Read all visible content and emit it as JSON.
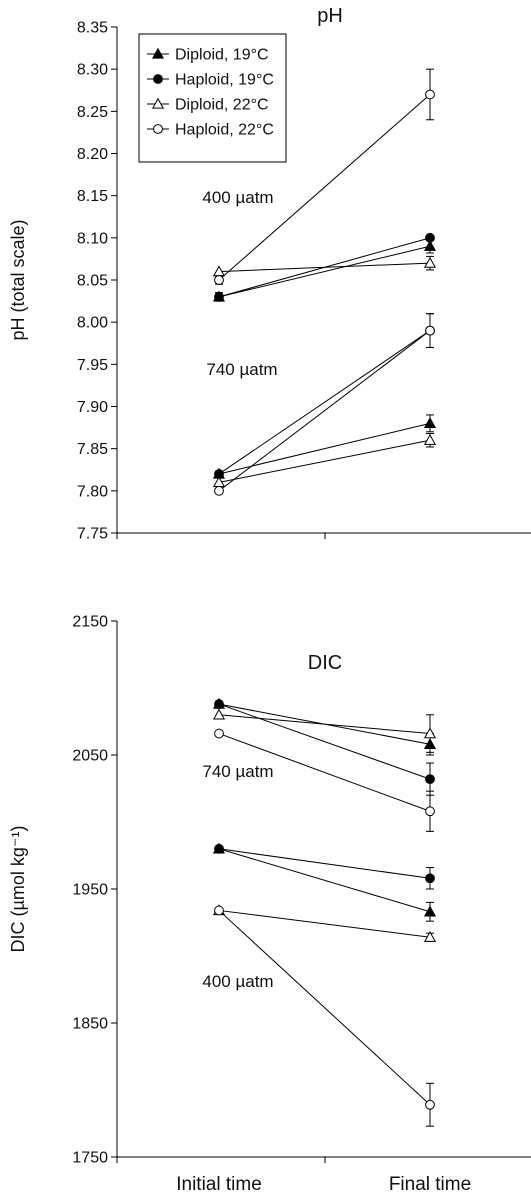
{
  "chart_data": [
    {
      "type": "line",
      "title": "pH",
      "ylabel": "pH (total scale)",
      "xlabel": "",
      "ylim": [
        7.75,
        8.35
      ],
      "yticks": [
        "7.75",
        "7.80",
        "7.85",
        "7.90",
        "7.95",
        "8.00",
        "8.05",
        "8.10",
        "8.15",
        "8.20",
        "8.25",
        "8.30",
        "8.35"
      ],
      "annotations": [
        "400 µatm",
        "740 µatm"
      ],
      "legend": {
        "placement": "top-left",
        "entries": [
          {
            "label": "Diploid, 19°C",
            "marker": "triangle",
            "filled": true
          },
          {
            "label": "Haploid, 19°C",
            "marker": "circle",
            "filled": true
          },
          {
            "label": "Diploid, 22°C",
            "marker": "triangle",
            "filled": false
          },
          {
            "label": "Haploid, 22°C",
            "marker": "circle",
            "filled": false
          }
        ]
      },
      "series": [
        {
          "name": "Diploid, 19°C",
          "marker": "triangle",
          "filled": true,
          "condition": "400 µatm",
          "y": [
            8.03,
            8.09
          ],
          "err": [
            0.005,
            0.008
          ]
        },
        {
          "name": "Haploid, 19°C",
          "marker": "circle",
          "filled": true,
          "condition": "400 µatm",
          "y": [
            8.03,
            8.1
          ],
          "err": [
            0.005,
            0
          ]
        },
        {
          "name": "Diploid, 22°C",
          "marker": "triangle",
          "filled": false,
          "condition": "400 µatm",
          "y": [
            8.06,
            8.07
          ],
          "err": [
            0,
            0.008
          ]
        },
        {
          "name": "Haploid, 22°C",
          "marker": "circle",
          "filled": false,
          "condition": "400 µatm",
          "y": [
            8.05,
            8.27
          ],
          "err": [
            0.005,
            0.03
          ]
        },
        {
          "name": "Diploid, 19°C",
          "marker": "triangle",
          "filled": true,
          "condition": "740 µatm",
          "y": [
            7.82,
            7.88
          ],
          "err": [
            0,
            0.01
          ]
        },
        {
          "name": "Haploid, 19°C",
          "marker": "circle",
          "filled": true,
          "condition": "740 µatm",
          "y": [
            7.82,
            7.99
          ],
          "err": [
            0,
            0.02
          ]
        },
        {
          "name": "Diploid, 22°C",
          "marker": "triangle",
          "filled": false,
          "condition": "740 µatm",
          "y": [
            7.81,
            7.86
          ],
          "err": [
            0,
            0.008
          ]
        },
        {
          "name": "Haploid, 22°C",
          "marker": "circle",
          "filled": false,
          "condition": "740 µatm",
          "y": [
            7.8,
            7.99
          ],
          "err": [
            0,
            0.02
          ]
        }
      ]
    },
    {
      "type": "line",
      "title": "DIC",
      "ylabel": "DIC (µmol kg⁻¹)",
      "xlabel": "",
      "categories": [
        "Initial time",
        "Final time"
      ],
      "ylim": [
        1750,
        2150
      ],
      "yticks": [
        "1750",
        "1850",
        "1950",
        "2050",
        "2150"
      ],
      "annotations": [
        "740 µatm",
        "400 µatm"
      ],
      "series": [
        {
          "name": "Diploid, 19°C",
          "marker": "triangle",
          "filled": true,
          "condition": "740 µatm",
          "y": [
            2088,
            2058
          ],
          "err": [
            0,
            8
          ]
        },
        {
          "name": "Haploid, 19°C",
          "marker": "circle",
          "filled": true,
          "condition": "740 µatm",
          "y": [
            2088,
            2032
          ],
          "err": [
            0,
            12
          ]
        },
        {
          "name": "Diploid, 22°C",
          "marker": "triangle",
          "filled": false,
          "condition": "740 µatm",
          "y": [
            2080,
            2066
          ],
          "err": [
            0,
            14
          ]
        },
        {
          "name": "Haploid, 22°C",
          "marker": "circle",
          "filled": false,
          "condition": "740 µatm",
          "y": [
            2066,
            2008
          ],
          "err": [
            0,
            15
          ]
        },
        {
          "name": "Diploid, 19°C",
          "marker": "triangle",
          "filled": true,
          "condition": "400 µatm",
          "y": [
            1980,
            1933
          ],
          "err": [
            0,
            7
          ]
        },
        {
          "name": "Haploid, 19°C",
          "marker": "circle",
          "filled": true,
          "condition": "400 µatm",
          "y": [
            1980,
            1958
          ],
          "err": [
            0,
            8
          ]
        },
        {
          "name": "Diploid, 22°C",
          "marker": "triangle",
          "filled": false,
          "condition": "400 µatm",
          "y": [
            1934,
            1914
          ],
          "err": [
            0,
            3
          ]
        },
        {
          "name": "Haploid, 22°C",
          "marker": "circle",
          "filled": false,
          "condition": "400 µatm",
          "y": [
            1934,
            1789
          ],
          "err": [
            0,
            16
          ]
        }
      ]
    }
  ]
}
